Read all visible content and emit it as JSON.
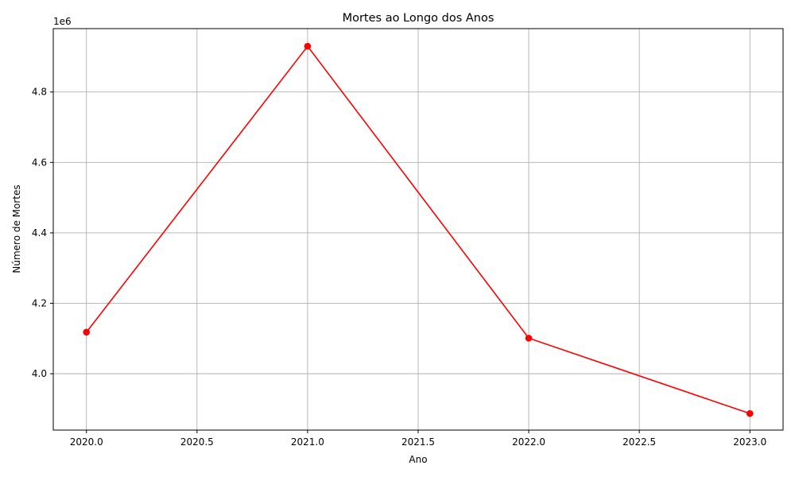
{
  "chart_data": {
    "type": "line",
    "title": "Mortes ao Longo dos Anos",
    "xlabel": "Ano",
    "ylabel": "Número de Mortes",
    "y_offset_label": "1e6",
    "xlim": [
      2019.85,
      2023.15
    ],
    "ylim": [
      3840000,
      4980000
    ],
    "x_ticks": [
      2020.0,
      2020.5,
      2021.0,
      2021.5,
      2022.0,
      2022.5,
      2023.0
    ],
    "x_tick_labels": [
      "2020.0",
      "2020.5",
      "2021.0",
      "2021.5",
      "2022.0",
      "2022.5",
      "2023.0"
    ],
    "y_ticks": [
      4000000,
      4200000,
      4400000,
      4600000,
      4800000
    ],
    "y_tick_labels": [
      "4.0",
      "4.2",
      "4.4",
      "4.6",
      "4.8"
    ],
    "grid": true,
    "series": [
      {
        "color": "#ff0000",
        "marker": "circle",
        "x": [
          2020,
          2021,
          2022,
          2023
        ],
        "y": [
          4118000,
          4930000,
          4101000,
          3887000
        ]
      }
    ]
  }
}
